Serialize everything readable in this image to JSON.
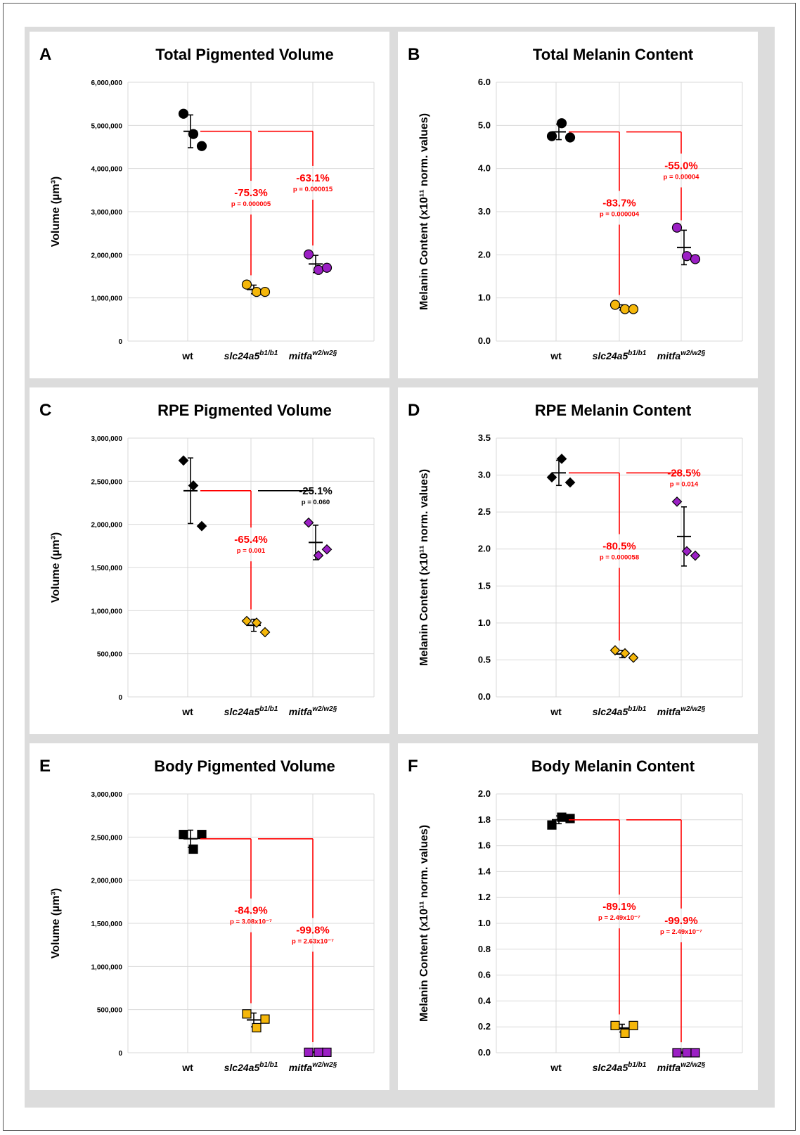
{
  "categories": [
    "wt",
    "slc24a5",
    "mitfa"
  ],
  "category_superscripts": [
    "",
    "b1/b1",
    "w2/w2§"
  ],
  "colors": {
    "wt": "#000000",
    "slc24a5": "#f5b70a",
    "mitfa": "#9b1fc4",
    "bracket_red": "#ff0000",
    "bracket_black": "#000000",
    "grid": "#d9d9d9"
  },
  "chart_data": [
    {
      "panel": "A",
      "type": "scatter",
      "title": "Total Pigmented Volume",
      "ylabel": "Volume (µm³)",
      "ylim": [
        0,
        6000000
      ],
      "yticks": [
        "0",
        "1,000,000",
        "2,000,000",
        "3,000,000",
        "4,000,000",
        "5,000,000",
        "6,000,000"
      ],
      "marker": "circle",
      "series": [
        {
          "category": "wt",
          "values": [
            5270000,
            4800000,
            4520000
          ],
          "mean": 4863000,
          "error": 380000
        },
        {
          "category": "slc24a5",
          "values": [
            1310000,
            1140000,
            1140000
          ],
          "mean": 1197000,
          "error": 100000
        },
        {
          "category": "mitfa",
          "values": [
            2010000,
            1650000,
            1700000
          ],
          "mean": 1787000,
          "error": 200000
        }
      ],
      "comparisons": [
        {
          "target": "slc24a5",
          "percent": "-75.3%",
          "p": "p = 0.000005",
          "significant": true
        },
        {
          "target": "mitfa",
          "percent": "-63.1%",
          "p": "p = 0.000015",
          "significant": true
        }
      ]
    },
    {
      "panel": "B",
      "type": "scatter",
      "title": "Total Melanin Content",
      "ylabel": "Melanin Content (x10¹¹ norm. values)",
      "ylim": [
        0,
        6
      ],
      "yticks": [
        "0.0",
        "1.0",
        "2.0",
        "3.0",
        "4.0",
        "5.0",
        "6.0"
      ],
      "marker": "circle",
      "series": [
        {
          "category": "wt",
          "values": [
            4.75,
            5.05,
            4.72
          ],
          "mean": 4.85,
          "error": 0.18
        },
        {
          "category": "slc24a5",
          "values": [
            0.84,
            0.74,
            0.74
          ],
          "mean": 0.78,
          "error": 0.06
        },
        {
          "category": "mitfa",
          "values": [
            2.63,
            1.97,
            1.9
          ],
          "mean": 2.17,
          "error": 0.4
        }
      ],
      "comparisons": [
        {
          "target": "slc24a5",
          "percent": "-83.7%",
          "p": "p = 0.000004",
          "significant": true
        },
        {
          "target": "mitfa",
          "percent": "-55.0%",
          "p": "p = 0.00004",
          "significant": true
        }
      ]
    },
    {
      "panel": "C",
      "type": "scatter",
      "title": "RPE Pigmented Volume",
      "ylabel": "Volume (µm³)",
      "ylim": [
        0,
        3000000
      ],
      "yticks": [
        "0",
        "500,000",
        "1,000,000",
        "1,500,000",
        "2,000,000",
        "2,500,000",
        "3,000,000"
      ],
      "marker": "diamond",
      "series": [
        {
          "category": "wt",
          "values": [
            2740000,
            2450000,
            1980000
          ],
          "mean": 2390000,
          "error": 380000
        },
        {
          "category": "slc24a5",
          "values": [
            880000,
            860000,
            750000
          ],
          "mean": 830000,
          "error": 70000
        },
        {
          "category": "mitfa",
          "values": [
            2020000,
            1640000,
            1710000
          ],
          "mean": 1790000,
          "error": 200000
        }
      ],
      "comparisons": [
        {
          "target": "slc24a5",
          "percent": "-65.4%",
          "p": "p = 0.001",
          "significant": true
        },
        {
          "target": "mitfa",
          "percent": "-25.1%",
          "p": "p = 0.060",
          "significant": false
        }
      ]
    },
    {
      "panel": "D",
      "type": "scatter",
      "title": "RPE Melanin Content",
      "ylabel": "Melanin Content (x10¹¹ norm. values)",
      "ylim": [
        0,
        3.5
      ],
      "yticks": [
        "0.0",
        "0.5",
        "1.0",
        "1.5",
        "2.0",
        "2.5",
        "3.0",
        "3.5"
      ],
      "marker": "diamond",
      "series": [
        {
          "category": "wt",
          "values": [
            2.97,
            3.22,
            2.9
          ],
          "mean": 3.03,
          "error": 0.17
        },
        {
          "category": "slc24a5",
          "values": [
            0.63,
            0.59,
            0.53
          ],
          "mean": 0.58,
          "error": 0.05
        },
        {
          "category": "mitfa",
          "values": [
            2.64,
            1.97,
            1.91
          ],
          "mean": 2.17,
          "error": 0.4
        }
      ],
      "comparisons": [
        {
          "target": "slc24a5",
          "percent": "-80.5%",
          "p": "p = 0.000058",
          "significant": true
        },
        {
          "target": "mitfa",
          "percent": "-28.5%",
          "p": "p = 0.014",
          "significant": true
        }
      ]
    },
    {
      "panel": "E",
      "type": "scatter",
      "title": "Body Pigmented Volume",
      "ylabel": "Volume (µm³)",
      "ylim": [
        0,
        3000000
      ],
      "yticks": [
        "0",
        "500,000",
        "1,000,000",
        "1,500,000",
        "2,000,000",
        "2,500,000",
        "3,000,000"
      ],
      "marker": "square",
      "series": [
        {
          "category": "wt",
          "values": [
            2530000,
            2360000,
            2530000
          ],
          "mean": 2480000,
          "error": 100000
        },
        {
          "category": "slc24a5",
          "values": [
            450000,
            290000,
            390000
          ],
          "mean": 380000,
          "error": 80000
        },
        {
          "category": "mitfa",
          "values": [
            5000,
            5000,
            5000
          ],
          "mean": 5000,
          "error": 3000
        }
      ],
      "comparisons": [
        {
          "target": "slc24a5",
          "percent": "-84.9%",
          "p": "p = 3.08x10⁻⁷",
          "significant": true
        },
        {
          "target": "mitfa",
          "percent": "-99.8%",
          "p": "p = 2.63x10⁻⁷",
          "significant": true
        }
      ]
    },
    {
      "panel": "F",
      "type": "scatter",
      "title": "Body Melanin Content",
      "ylabel": "Melanin Content (x10¹¹ norm. values)",
      "ylim": [
        0,
        2
      ],
      "yticks": [
        "0.0",
        "0.2",
        "0.4",
        "0.6",
        "0.8",
        "1.0",
        "1.2",
        "1.4",
        "1.6",
        "1.8",
        "2.0"
      ],
      "marker": "square",
      "series": [
        {
          "category": "wt",
          "values": [
            1.76,
            1.82,
            1.81
          ],
          "mean": 1.8,
          "error": 0.03
        },
        {
          "category": "slc24a5",
          "values": [
            0.21,
            0.15,
            0.21
          ],
          "mean": 0.19,
          "error": 0.03
        },
        {
          "category": "mitfa",
          "values": [
            0.0,
            0.0,
            0.0
          ],
          "mean": 0.0,
          "error": 0.005
        }
      ],
      "comparisons": [
        {
          "target": "slc24a5",
          "percent": "-89.1%",
          "p": "p = 2.49x10⁻⁷",
          "significant": true
        },
        {
          "target": "mitfa",
          "percent": "-99.9%",
          "p": "p = 2.49x10⁻⁷",
          "significant": true
        }
      ]
    }
  ]
}
